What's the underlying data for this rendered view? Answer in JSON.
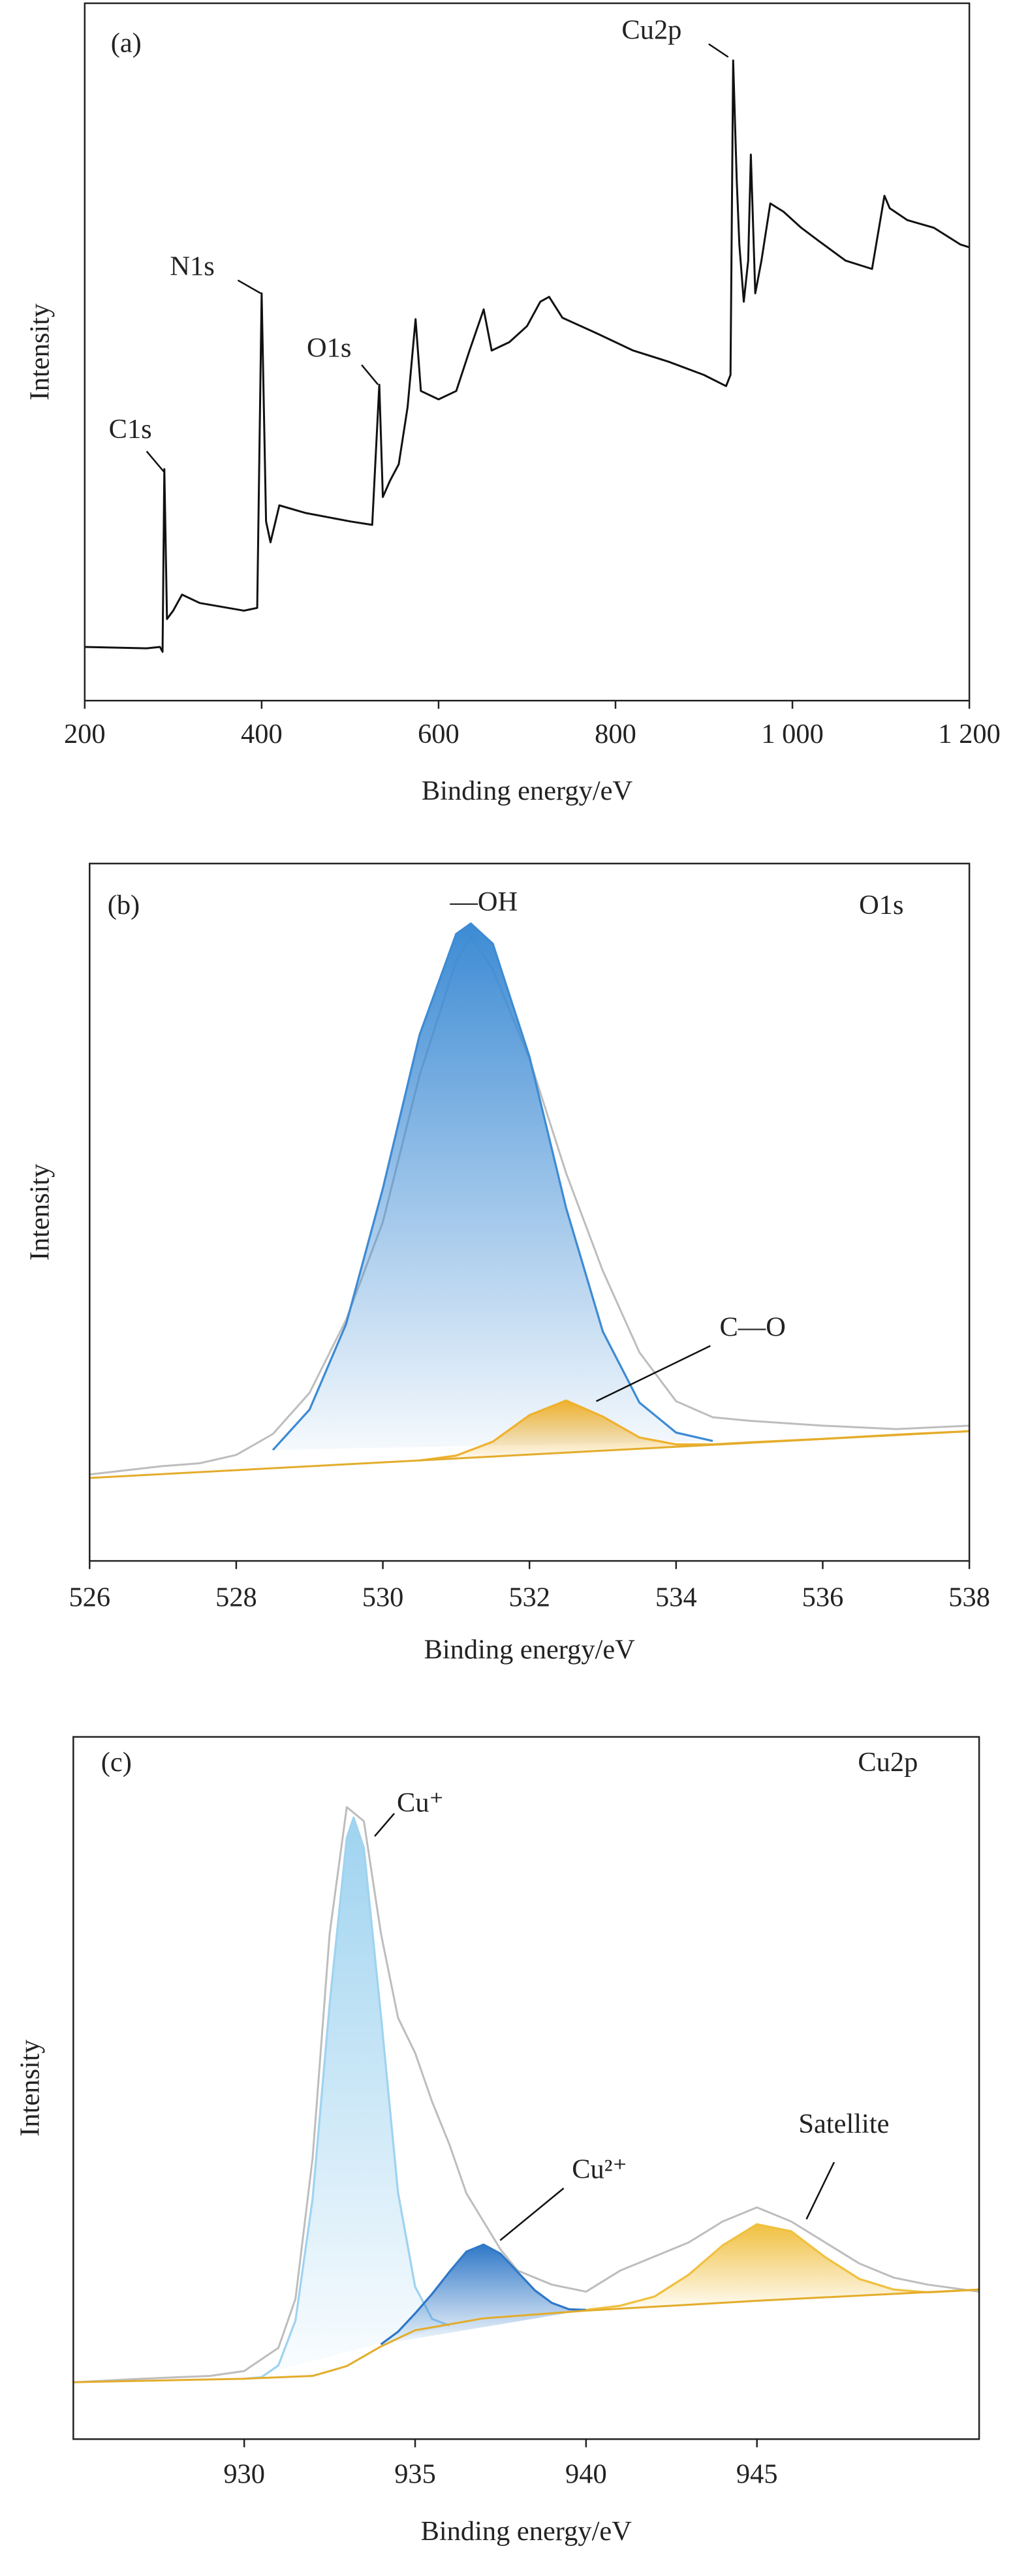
{
  "chart_data": [
    {
      "type": "line",
      "label": "(a)",
      "xlabel": "Binding energy/eV",
      "ylabel": "Intensity",
      "xlim": [
        200,
        1200
      ],
      "ylim": [
        0,
        100
      ],
      "xticks": [
        200,
        400,
        600,
        800,
        {
          "value": 1000,
          "label": "1 000"
        },
        {
          "value": 1200,
          "label": "1 200"
        }
      ],
      "annotations": [
        "C1s",
        "N1s",
        "O1s",
        "Cu2p"
      ],
      "series": [
        {
          "color": "#111111",
          "fill": false,
          "x": [
            200,
            270,
            285,
            288,
            290,
            293,
            300,
            310,
            330,
            380,
            395,
            400,
            405,
            410,
            420,
            450,
            500,
            525,
            533,
            537,
            545,
            555,
            565,
            574,
            580,
            600,
            620,
            635,
            651,
            660,
            680,
            700,
            715,
            725,
            740,
            780,
            820,
            860,
            900,
            925,
            930,
            933,
            937,
            940,
            945,
            950,
            953,
            958,
            965,
            975,
            990,
            1010,
            1030,
            1060,
            1090,
            1104,
            1110,
            1130,
            1160,
            1190,
            1200
          ],
          "values": [
            7.7,
            7.5,
            7.7,
            7.0,
            33.2,
            11.7,
            12.9,
            15.2,
            14.0,
            12.9,
            13.3,
            58.4,
            25.7,
            22.7,
            28.0,
            26.9,
            25.7,
            25.2,
            45.3,
            29.2,
            31.5,
            33.9,
            42.1,
            54.7,
            44.4,
            43.2,
            44.4,
            50.2,
            56.1,
            50.2,
            51.4,
            53.7,
            57.2,
            57.9,
            54.9,
            52.6,
            50.2,
            48.6,
            46.7,
            45.1,
            46.7,
            91.8,
            74.8,
            65.4,
            57.2,
            63.1,
            78.3,
            58.4,
            63.1,
            71.3,
            70.1,
            67.8,
            65.9,
            63.1,
            61.9,
            72.4,
            70.6,
            68.9,
            67.8,
            65.4,
            65.0
          ]
        }
      ]
    },
    {
      "type": "line",
      "label": "(b)",
      "xlabel": "Binding energy/eV",
      "ylabel": "Intensity",
      "xlim": [
        526,
        538
      ],
      "ylim": [
        0,
        100
      ],
      "xticks": [
        526,
        528,
        530,
        532,
        534,
        536,
        538
      ],
      "annotations": [
        "O1s"
      ],
      "series": [
        {
          "color": "#bdbdbd",
          "fill": false,
          "x": [
            526,
            527,
            527.5,
            528,
            528.5,
            529,
            529.5,
            530,
            530.5,
            531,
            531.2,
            531.5,
            532,
            532.5,
            533,
            533.5,
            534,
            534.5,
            535,
            536,
            537,
            538
          ],
          "values": [
            12.4,
            13.6,
            14.0,
            15.2,
            18.2,
            24.1,
            34.6,
            48.6,
            69.6,
            86.0,
            89.5,
            84.8,
            72.0,
            55.6,
            41.6,
            29.9,
            22.9,
            20.6,
            20.1,
            19.4,
            18.9,
            19.4
          ]
        },
        {
          "name": "—OH",
          "color": "#3d8bd4",
          "fill": true,
          "x": [
            528.5,
            529,
            529.5,
            530,
            530.5,
            531,
            531.2,
            531.5,
            532,
            532.5,
            533,
            533.5,
            534,
            534.5
          ],
          "values": [
            15.9,
            21.7,
            34.0,
            53.4,
            75.4,
            89.9,
            91.4,
            88.5,
            72.3,
            50.6,
            32.9,
            22.7,
            18.4,
            17.2
          ]
        },
        {
          "name": "C—O",
          "color": "#efb12e",
          "fill": true,
          "x": [
            530.5,
            531,
            531.5,
            532,
            532.5,
            533,
            533.5,
            534,
            534.5,
            535,
            536,
            537,
            538
          ],
          "values": [
            14.4,
            15.1,
            17.1,
            20.9,
            23.0,
            20.7,
            17.7,
            16.7,
            16.7,
            17.0,
            17.5,
            18.1,
            18.6
          ]
        },
        {
          "color": "#e3ac2a",
          "fill": false,
          "x": [
            526,
            538
          ],
          "values": [
            11.9,
            18.6
          ]
        }
      ]
    },
    {
      "type": "line",
      "label": "(c)",
      "xlabel": "Binding energy/eV",
      "ylabel": "Intensity",
      "xlim": [
        925,
        951.5
      ],
      "ylim": [
        0,
        100
      ],
      "xticks": [
        930,
        935,
        940,
        945
      ],
      "annotations": [
        "Cu2p"
      ],
      "series": [
        {
          "color": "#bdbdbd",
          "fill": false,
          "x": [
            925,
            927,
            929,
            930,
            931,
            931.5,
            932,
            932.5,
            933,
            933.5,
            934,
            934.5,
            935,
            935.5,
            936,
            936.5,
            937,
            937.5,
            938,
            939,
            940,
            941,
            942,
            943,
            944,
            945,
            946,
            947,
            948,
            949,
            950,
            951.5
          ],
          "values": [
            8.1,
            8.6,
            9.0,
            9.7,
            13,
            20,
            40,
            72,
            90,
            88,
            72,
            60,
            55,
            48,
            42,
            35,
            31,
            27,
            24,
            22,
            21,
            24,
            26,
            28,
            31,
            33,
            31,
            28,
            25,
            23,
            22,
            21
          ]
        },
        {
          "name": "Cu⁺",
          "color": "#9fd3f0",
          "fill": true,
          "x": [
            930,
            930.5,
            931,
            931.5,
            932,
            932.5,
            933,
            933.2,
            933.5,
            934,
            934.5,
            935,
            935.5,
            936
          ],
          "values": [
            8.6,
            8.8,
            10.5,
            16.9,
            34.2,
            62.0,
            85.6,
            88.5,
            84.2,
            60.3,
            35.1,
            21.7,
            17.1,
            16.2
          ]
        },
        {
          "name": "Cu²⁺",
          "color": "#2f78c8",
          "fill": true,
          "x": [
            934,
            934.5,
            935,
            935.5,
            936,
            936.5,
            937,
            937.5,
            938,
            938.5,
            939,
            939.5,
            940
          ],
          "values": [
            13.5,
            15.3,
            17.9,
            20.7,
            23.8,
            26.7,
            27.7,
            26.4,
            23.8,
            21.2,
            19.4,
            18.5,
            18.4
          ]
        },
        {
          "name": "Satellite",
          "color": "#f0c040",
          "fill": true,
          "x": [
            940,
            941,
            942,
            943,
            944,
            945,
            946,
            947,
            948,
            949,
            950,
            951.5
          ],
          "values": [
            18.4,
            19.0,
            20.3,
            23.4,
            27.6,
            30.6,
            29.6,
            25.9,
            22.8,
            21.3,
            20.9,
            21.3
          ]
        },
        {
          "color": "#e3ac2a",
          "fill": false,
          "x": [
            925,
            930,
            932,
            933,
            934,
            935,
            937,
            940,
            945,
            951.5
          ],
          "values": [
            8.1,
            8.6,
            9.0,
            10.4,
            13.2,
            15.5,
            17.2,
            18.3,
            19.7,
            21.3
          ]
        }
      ]
    }
  ]
}
